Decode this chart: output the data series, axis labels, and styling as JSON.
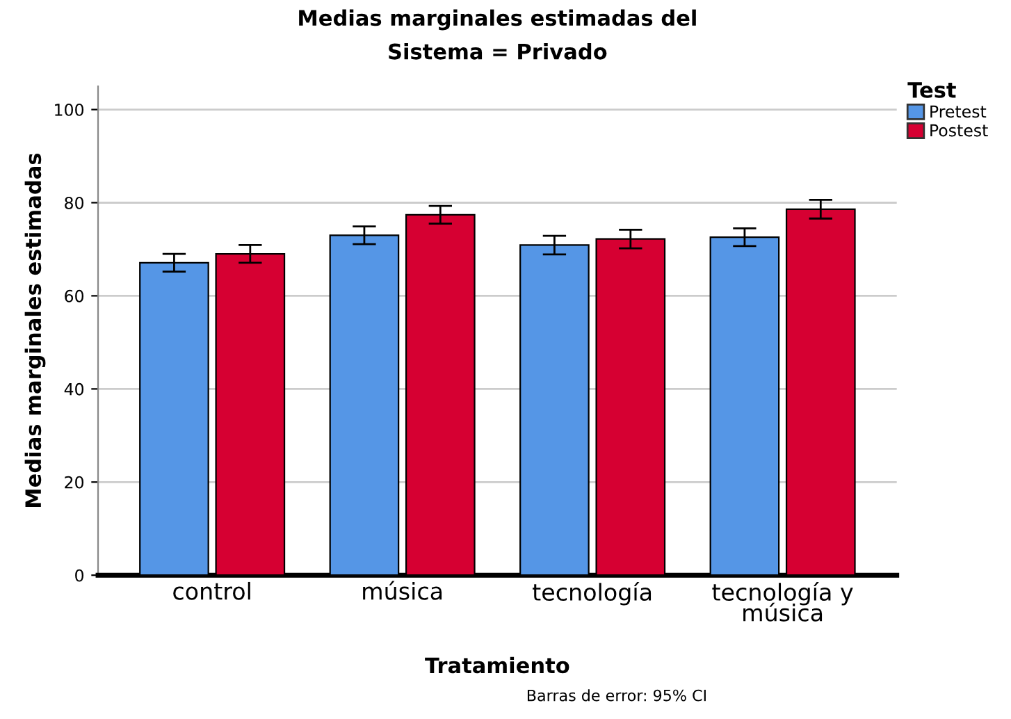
{
  "chart_data": {
    "type": "bar",
    "title": "Medias marginales estimadas del\nSistema = Privado",
    "xlabel": "Tratamiento",
    "ylabel": "Medias marginales estimadas",
    "legend_title": "Test",
    "categories": [
      "control",
      "música",
      "tecnología",
      "tecnología y\nmúsica"
    ],
    "series": [
      {
        "name": "Pretest",
        "color": "#5596e6",
        "values": [
          67.1,
          73.0,
          70.9,
          72.6
        ],
        "errors": [
          1.9,
          1.9,
          2.0,
          1.9
        ]
      },
      {
        "name": "Postest",
        "color": "#d60032",
        "values": [
          69.0,
          77.4,
          72.2,
          78.6
        ],
        "errors": [
          1.9,
          1.9,
          2.0,
          2.0
        ]
      }
    ],
    "ylim": [
      0,
      105
    ],
    "yticks": [
      0,
      20,
      40,
      60,
      80,
      100
    ],
    "grid": "y",
    "legend": "top right",
    "annotations": [
      "Barras de error: 95% CI"
    ]
  }
}
